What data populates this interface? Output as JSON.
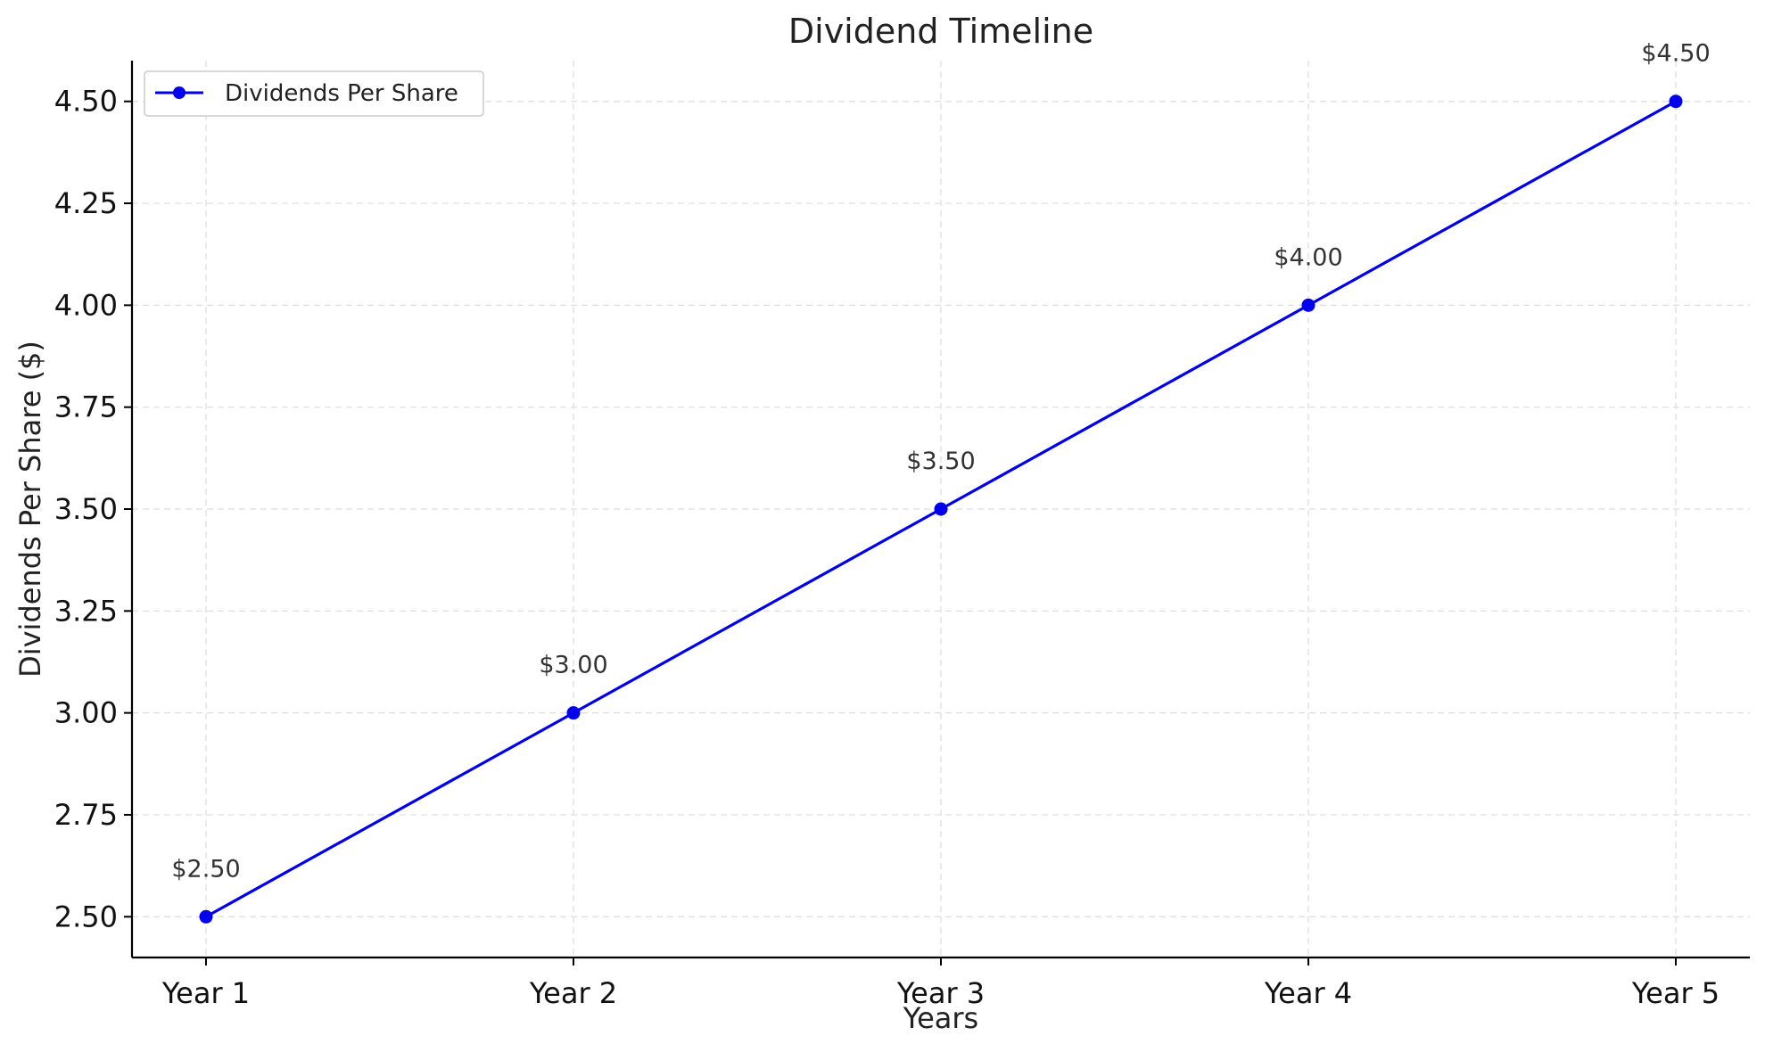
{
  "chart_data": {
    "type": "line",
    "title": "Dividend Timeline",
    "xlabel": "Years",
    "ylabel": "Dividends Per Share ($)",
    "categories": [
      "Year 1",
      "Year 2",
      "Year 3",
      "Year 4",
      "Year 5"
    ],
    "series": [
      {
        "name": "Dividends Per Share",
        "values": [
          2.5,
          3.0,
          3.5,
          4.0,
          4.5
        ],
        "color": "#0000ee",
        "marker": "circle"
      }
    ],
    "data_labels": [
      "$2.50",
      "$3.00",
      "$3.50",
      "$4.00",
      "$4.50"
    ],
    "ylim": [
      2.4,
      4.6
    ],
    "yticks": [
      2.5,
      2.75,
      3.0,
      3.25,
      3.5,
      3.75,
      4.0,
      4.25,
      4.5
    ],
    "ytick_labels": [
      "2.50",
      "2.75",
      "3.00",
      "3.25",
      "3.50",
      "3.75",
      "4.00",
      "4.25",
      "4.50"
    ],
    "grid": true,
    "legend_position": "top-left"
  }
}
